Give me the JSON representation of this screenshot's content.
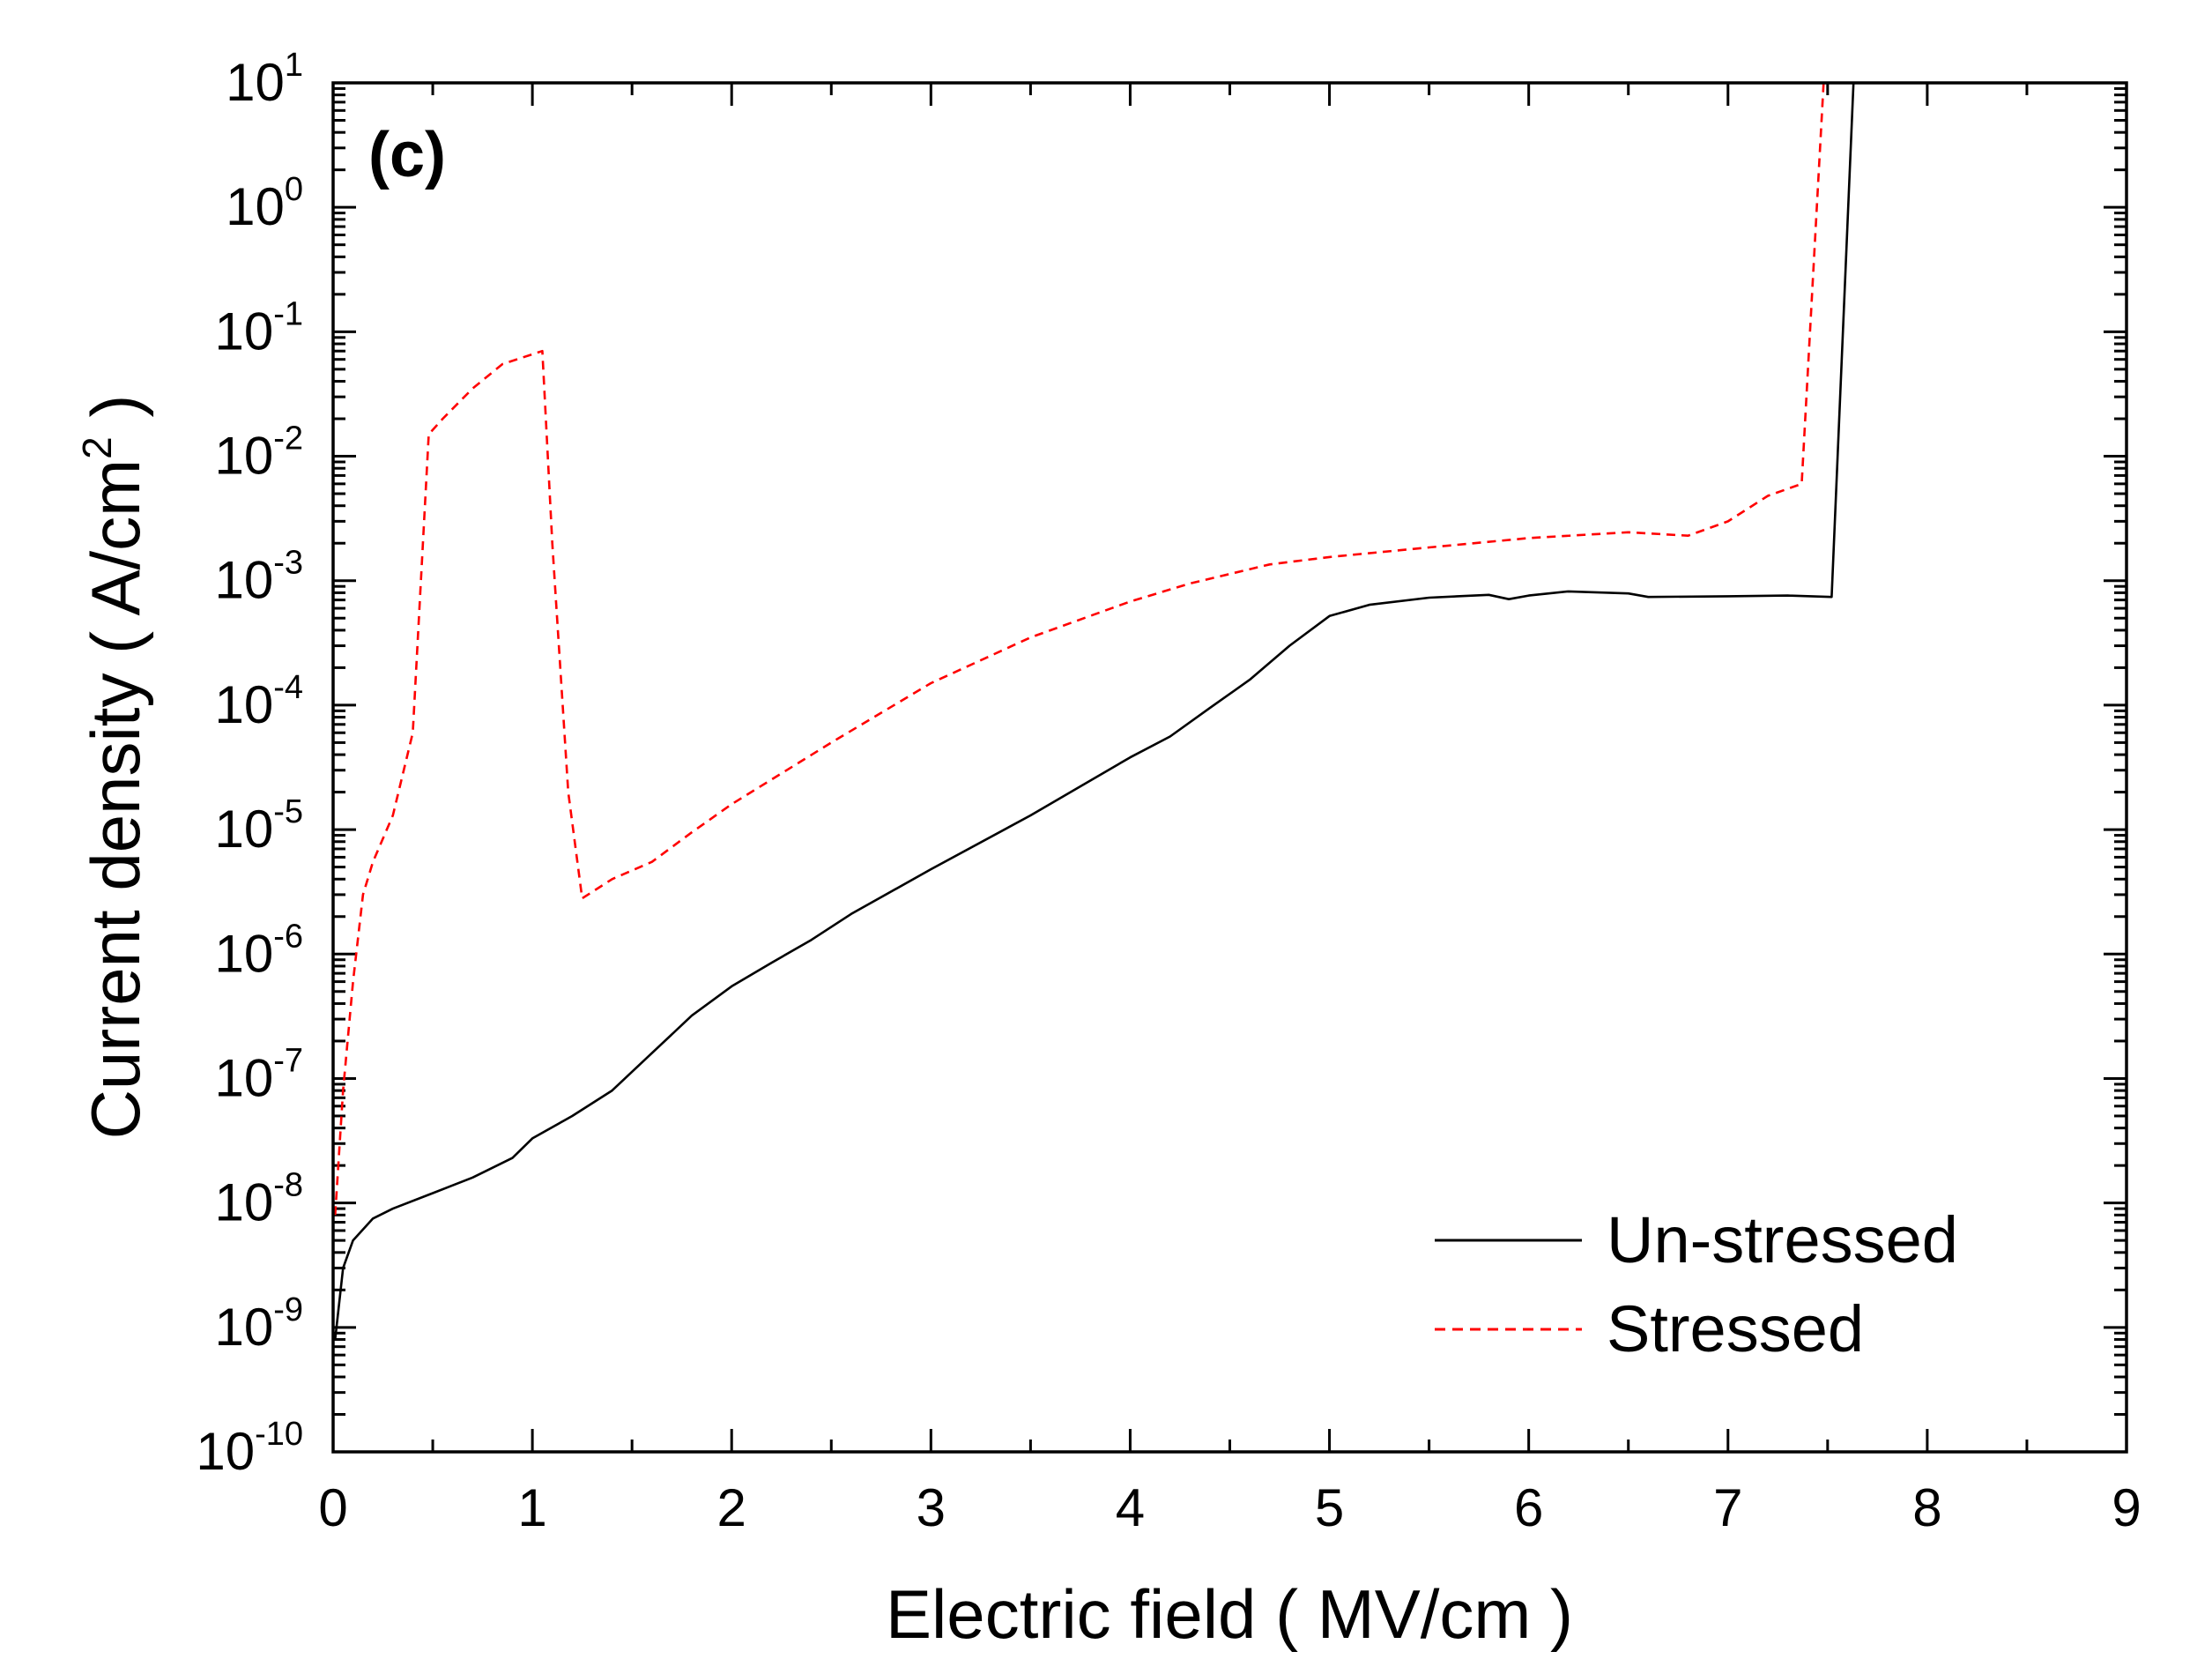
{
  "chart_data": {
    "type": "line",
    "panel_label": "(c)",
    "xlabel": "Electric field ( MV/cm )",
    "ylabel_main": "Current density ( A/cm",
    "ylabel_sup": "2",
    "ylabel_end": " )",
    "xlim": [
      0,
      9
    ],
    "ylim_log10": [
      -10,
      1
    ],
    "y_scale": "log",
    "x_ticks": [
      "0",
      "1",
      "2",
      "3",
      "4",
      "5",
      "6",
      "7",
      "8",
      "9"
    ],
    "y_ticks": [
      {
        "base": "10",
        "exp": "1"
      },
      {
        "base": "10",
        "exp": "0"
      },
      {
        "base": "10",
        "exp": "-1"
      },
      {
        "base": "10",
        "exp": "-2"
      },
      {
        "base": "10",
        "exp": "-3"
      },
      {
        "base": "10",
        "exp": "-4"
      },
      {
        "base": "10",
        "exp": "-5"
      },
      {
        "base": "10",
        "exp": "-6"
      },
      {
        "base": "10",
        "exp": "-7"
      },
      {
        "base": "10",
        "exp": "-8"
      },
      {
        "base": "10",
        "exp": "-9"
      },
      {
        "base": "10",
        "exp": "-10"
      }
    ],
    "legend_position": "bottom-right",
    "series": [
      {
        "name": "Un-stressed",
        "color": "#000000",
        "style": "solid",
        "points": [
          [
            0.01,
            8e-10
          ],
          [
            0.05,
            3e-09
          ],
          [
            0.1,
            5e-09
          ],
          [
            0.2,
            7.5e-09
          ],
          [
            0.3,
            9e-09
          ],
          [
            0.5,
            1.2e-08
          ],
          [
            0.7,
            1.6e-08
          ],
          [
            0.9,
            2.3e-08
          ],
          [
            1.0,
            3.3e-08
          ],
          [
            1.2,
            5e-08
          ],
          [
            1.4,
            8e-08
          ],
          [
            1.6,
            1.6e-07
          ],
          [
            1.8,
            3.2e-07
          ],
          [
            2.0,
            5.5e-07
          ],
          [
            2.2,
            8.5e-07
          ],
          [
            2.4,
            1.3e-06
          ],
          [
            2.6,
            2.1e-06
          ],
          [
            3.0,
            4.8e-06
          ],
          [
            3.5,
            1.3e-05
          ],
          [
            4.0,
            3.8e-05
          ],
          [
            4.2,
            5.6e-05
          ],
          [
            4.4,
            9.5e-05
          ],
          [
            4.6,
            0.00016
          ],
          [
            4.8,
            0.0003
          ],
          [
            5.0,
            0.00052
          ],
          [
            5.2,
            0.00064
          ],
          [
            5.5,
            0.00073
          ],
          [
            5.8,
            0.00077
          ],
          [
            5.9,
            0.00071
          ],
          [
            6.0,
            0.00076
          ],
          [
            6.2,
            0.00082
          ],
          [
            6.5,
            0.00079
          ],
          [
            6.6,
            0.00074
          ],
          [
            7.0,
            0.00075
          ],
          [
            7.3,
            0.00076
          ],
          [
            7.52,
            0.00074
          ],
          [
            7.63,
            10
          ],
          [
            9.0,
            10
          ]
        ]
      },
      {
        "name": "Stressed",
        "color": "#ff0000",
        "style": "dashed",
        "points": [
          [
            0.01,
            8e-09
          ],
          [
            0.05,
            8e-08
          ],
          [
            0.1,
            6e-07
          ],
          [
            0.15,
            3e-06
          ],
          [
            0.2,
            5.5e-06
          ],
          [
            0.3,
            1.3e-05
          ],
          [
            0.4,
            6e-05
          ],
          [
            0.48,
            0.015
          ],
          [
            0.55,
            0.02
          ],
          [
            0.7,
            0.035
          ],
          [
            0.85,
            0.055
          ],
          [
            1.05,
            0.07
          ],
          [
            1.1,
            0.002
          ],
          [
            1.18,
            2e-05
          ],
          [
            1.25,
            2.8e-06
          ],
          [
            1.4,
            4e-06
          ],
          [
            1.6,
            5.5e-06
          ],
          [
            1.8,
            9.5e-06
          ],
          [
            2.0,
            1.6e-05
          ],
          [
            2.5,
            5e-05
          ],
          [
            3.0,
            0.00015
          ],
          [
            3.5,
            0.00035
          ],
          [
            4.0,
            0.00068
          ],
          [
            4.3,
            0.00095
          ],
          [
            4.7,
            0.00135
          ],
          [
            5.0,
            0.00155
          ],
          [
            5.5,
            0.00185
          ],
          [
            6.0,
            0.0022
          ],
          [
            6.5,
            0.00245
          ],
          [
            6.8,
            0.0023
          ],
          [
            7.0,
            0.003
          ],
          [
            7.2,
            0.0048
          ],
          [
            7.37,
            0.006
          ],
          [
            7.48,
            10
          ],
          [
            9.0,
            10
          ]
        ]
      }
    ]
  }
}
